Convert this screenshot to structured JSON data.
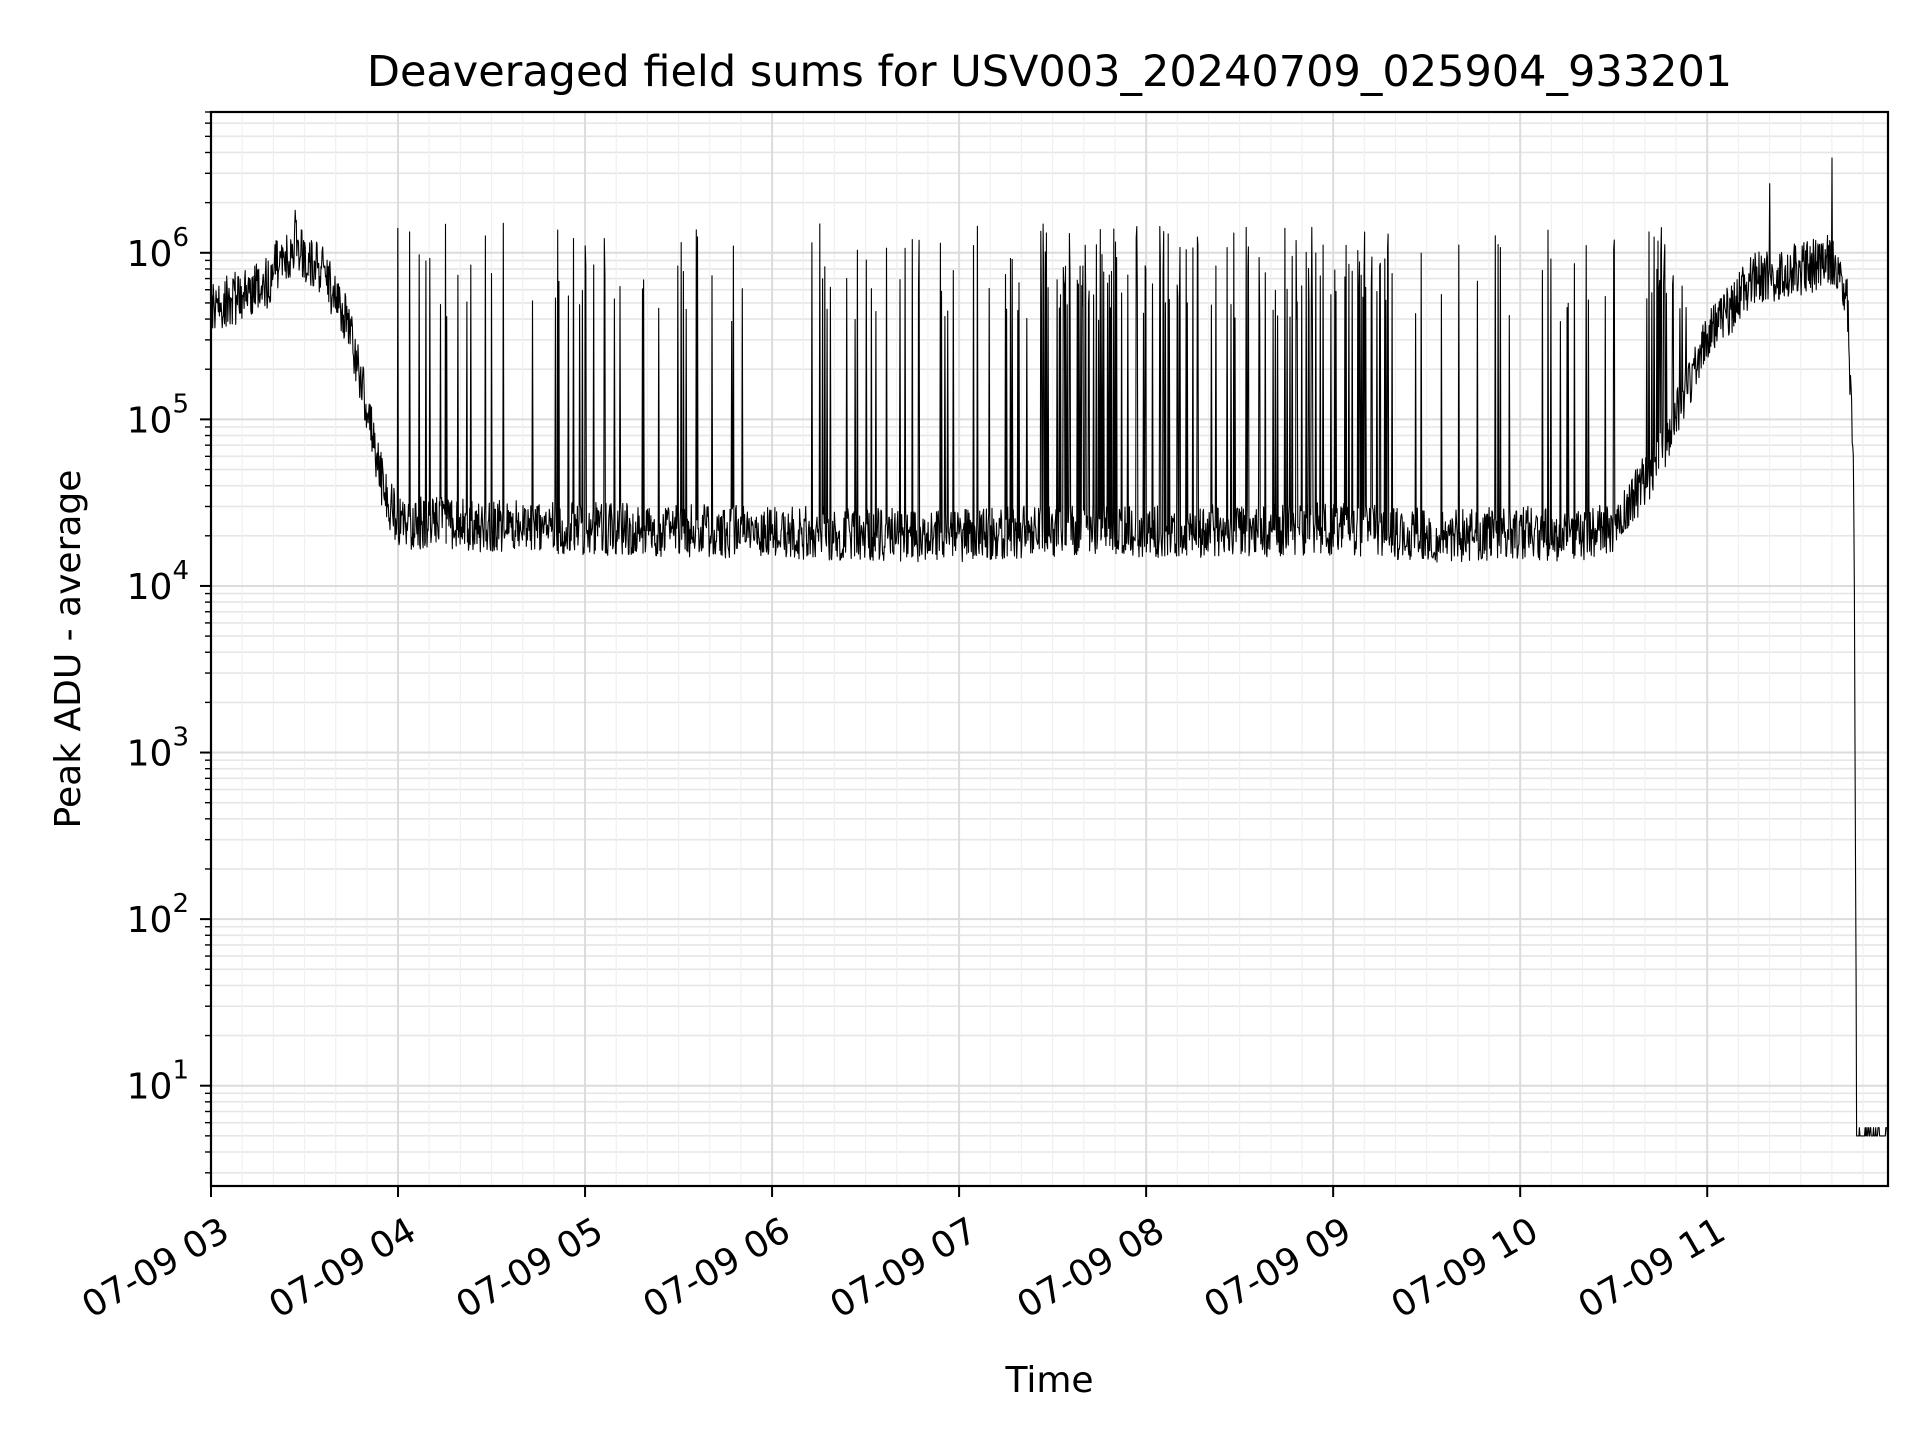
{
  "chart_data": {
    "type": "line",
    "title": "Deaveraged field sums for USV003_20240709_025904_933201",
    "xlabel": "Time",
    "ylabel": "Peak ADU - average",
    "y_scale": "log",
    "ylim": [
      2.5,
      7000000
    ],
    "xlim": [
      "07-09 03:00",
      "07-09 11:58"
    ],
    "grid": "major and minor, light gray",
    "line_color": "#000000",
    "x_ticks": [
      "07-09 03",
      "07-09 04",
      "07-09 05",
      "07-09 06",
      "07-09 07",
      "07-09 08",
      "07-09 09",
      "07-09 10",
      "07-09 11"
    ],
    "y_ticks": [
      {
        "value": 10,
        "base": "10",
        "exp": "1"
      },
      {
        "value": 100,
        "base": "10",
        "exp": "2"
      },
      {
        "value": 1000,
        "base": "10",
        "exp": "3"
      },
      {
        "value": 10000,
        "base": "10",
        "exp": "4"
      },
      {
        "value": 100000,
        "base": "10",
        "exp": "5"
      },
      {
        "value": 1000000,
        "base": "10",
        "exp": "6"
      }
    ],
    "series": [
      {
        "baseline": [
          [
            "07-09 03:00",
            450000
          ],
          [
            "07-09 03:10",
            560000
          ],
          [
            "07-09 03:17",
            620000
          ],
          [
            "07-09 03:22",
            900000
          ],
          [
            "07-09 03:27",
            1100000
          ],
          [
            "07-09 03:35",
            800000
          ],
          [
            "07-09 03:40",
            550000
          ],
          [
            "07-09 03:45",
            320000
          ],
          [
            "07-09 03:50",
            120000
          ],
          [
            "07-09 03:55",
            40000
          ],
          [
            "07-09 04:00",
            24000
          ],
          [
            "07-09 05:00",
            22000
          ],
          [
            "07-09 06:00",
            21000
          ],
          [
            "07-09 07:00",
            20000
          ],
          [
            "07-09 07:40",
            22000
          ],
          [
            "07-09 08:00",
            21000
          ],
          [
            "07-09 09:00",
            22000
          ],
          [
            "07-09 09:35",
            20000
          ],
          [
            "07-09 10:00",
            21000
          ],
          [
            "07-09 10:15",
            20000
          ],
          [
            "07-09 10:30",
            22000
          ],
          [
            "07-09 10:45",
            60000
          ],
          [
            "07-09 11:00",
            300000
          ],
          [
            "07-09 11:15",
            700000
          ],
          [
            "07-09 11:30",
            800000
          ],
          [
            "07-09 11:40",
            900000
          ],
          [
            "07-09 11:45",
            500000
          ],
          [
            "07-09 11:47",
            50000
          ],
          [
            "07-09 11:48",
            5
          ],
          [
            "07-09 11:58",
            5
          ]
        ],
        "spike_level": 1000000,
        "peaks": [
          [
            "07-09 03:27",
            1800000
          ],
          [
            "07-09 04:00",
            1400000
          ],
          [
            "07-09 05:00",
            1100000
          ],
          [
            "07-09 06:45",
            1200000
          ],
          [
            "07-09 11:20",
            2600000
          ],
          [
            "07-09 11:40",
            3700000
          ]
        ],
        "dense_bands": [
          [
            "07-09 07:25",
            "07-09 09:20"
          ],
          [
            "07-09 10:40",
            "07-09 11:45"
          ]
        ]
      }
    ]
  }
}
